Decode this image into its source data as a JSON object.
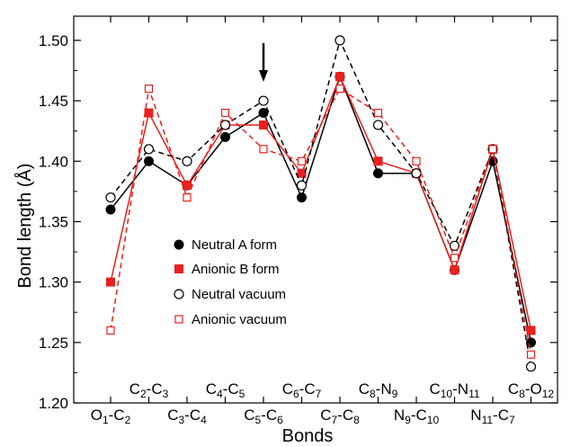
{
  "chart_data": {
    "type": "line",
    "xlabel": "Bonds",
    "ylabel": "Bond length (Å)",
    "ylim": [
      1.2,
      1.52
    ],
    "yticks": [
      "1.20",
      "1.25",
      "1.30",
      "1.35",
      "1.40",
      "1.45",
      "1.50"
    ],
    "categories": [
      {
        "base": "O",
        "sub1": "1",
        "mid": "-C",
        "sub2": "2",
        "row": "low"
      },
      {
        "base": "C",
        "sub1": "2",
        "mid": "-C",
        "sub2": "3",
        "row": "high"
      },
      {
        "base": "C",
        "sub1": "3",
        "mid": "-C",
        "sub2": "4",
        "row": "low"
      },
      {
        "base": "C",
        "sub1": "4",
        "mid": "-C",
        "sub2": "5",
        "row": "high"
      },
      {
        "base": "C",
        "sub1": "5",
        "mid": "-C",
        "sub2": "6",
        "row": "low"
      },
      {
        "base": "C",
        "sub1": "6",
        "mid": "-C",
        "sub2": "7",
        "row": "high"
      },
      {
        "base": "C",
        "sub1": "7",
        "mid": "-C",
        "sub2": "8",
        "row": "low"
      },
      {
        "base": "C",
        "sub1": "8",
        "mid": "-N",
        "sub2": "9",
        "row": "high"
      },
      {
        "base": "N",
        "sub1": "9",
        "mid": "-C",
        "sub2": "10",
        "row": "low"
      },
      {
        "base": "C",
        "sub1": "10",
        "mid": "-N",
        "sub2": "11",
        "row": "high"
      },
      {
        "base": "N",
        "sub1": "11",
        "mid": "-C",
        "sub2": "7",
        "row": "low"
      },
      {
        "base": "C",
        "sub1": "8",
        "mid": "-O",
        "sub2": "12",
        "row": "high"
      }
    ],
    "series": [
      {
        "name": "Neutral A form",
        "color": "#000000",
        "marker": "filled-circle",
        "line": "solid",
        "values": [
          1.36,
          1.4,
          1.38,
          1.42,
          1.44,
          1.37,
          1.47,
          1.39,
          1.39,
          1.31,
          1.4,
          1.25
        ]
      },
      {
        "name": "Anionic B form",
        "color": "#e8201f",
        "marker": "filled-square",
        "line": "solid",
        "values": [
          1.3,
          1.44,
          1.38,
          1.43,
          1.43,
          1.39,
          1.47,
          1.4,
          1.39,
          1.31,
          1.41,
          1.26
        ]
      },
      {
        "name": "Neutral vacuum",
        "color": "#000000",
        "marker": "open-circle",
        "line": "dashed",
        "values": [
          1.37,
          1.41,
          1.4,
          1.43,
          1.45,
          1.38,
          1.5,
          1.43,
          1.39,
          1.33,
          1.41,
          1.23
        ]
      },
      {
        "name": "Anionic vacuum",
        "color": "#e8201f",
        "marker": "open-square",
        "line": "dashed",
        "values": [
          1.26,
          1.46,
          1.37,
          1.44,
          1.41,
          1.4,
          1.46,
          1.44,
          1.4,
          1.32,
          1.41,
          1.24
        ]
      }
    ],
    "annotation": {
      "type": "arrow",
      "category_index": 4
    },
    "legend_position": "lower-left-center",
    "grid": false
  }
}
